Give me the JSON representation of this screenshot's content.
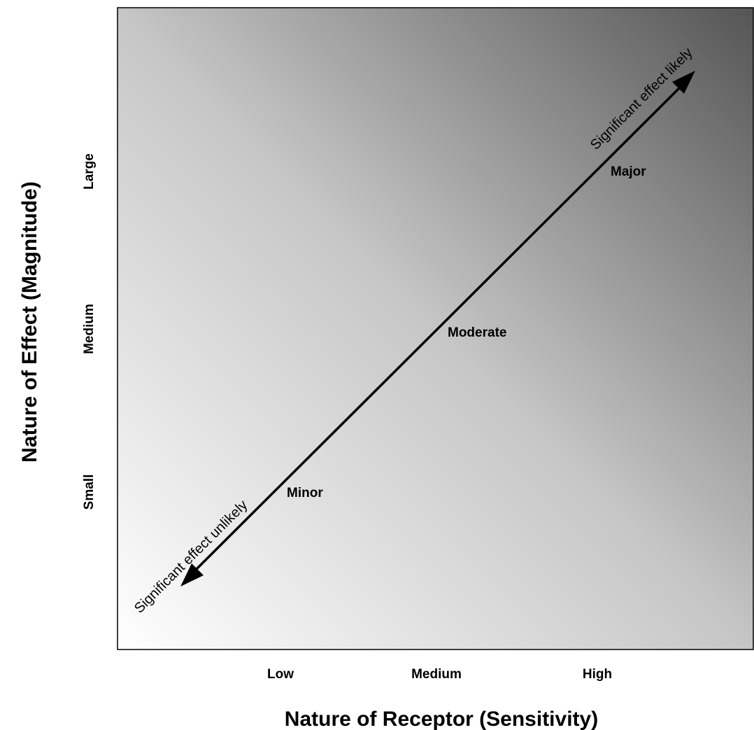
{
  "diagram": {
    "x_axis": {
      "title": "Nature of Receptor (Sensitivity)",
      "ticks": [
        "Low",
        "Medium",
        "High"
      ]
    },
    "y_axis": {
      "title": "Nature of Effect (Magnitude)",
      "ticks": [
        "Small",
        "Medium",
        "Large"
      ]
    },
    "levels": [
      "Minor",
      "Moderate",
      "Major"
    ],
    "arrow": {
      "upper_label": "Significant effect likely",
      "lower_label": "Significant effect unlikely"
    },
    "colors": {
      "gradient_light": "#ffffff",
      "gradient_dark": "#555555",
      "border": "#000000",
      "arrow": "#000000"
    }
  }
}
